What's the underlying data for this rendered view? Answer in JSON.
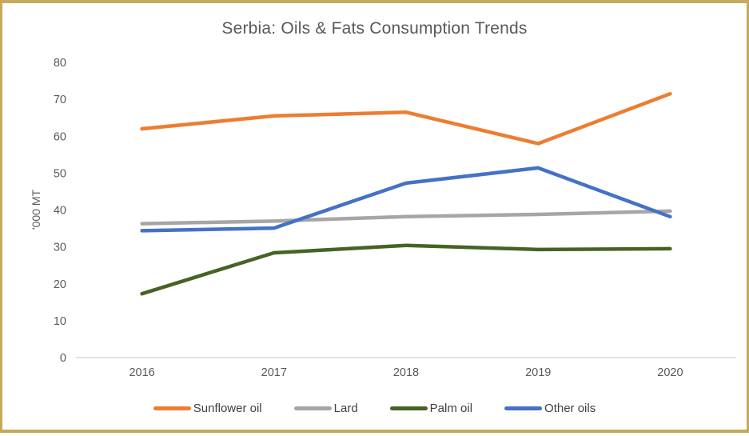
{
  "window": {
    "border_color": "#C5AA5A",
    "background": "#ffffff"
  },
  "chart_data": {
    "type": "line",
    "title": "Serbia: Oils & Fats Consumption Trends",
    "xlabel": "",
    "ylabel": "'000 MT",
    "categories": [
      "2016",
      "2017",
      "2018",
      "2019",
      "2020"
    ],
    "y_ticks": [
      0,
      10,
      20,
      30,
      40,
      50,
      60,
      70,
      80
    ],
    "ylim": [
      0,
      80
    ],
    "grid": false,
    "legend_position": "bottom",
    "axis_color": "#D9D9D9",
    "text_color": "#595959",
    "legend_text_color": "#404040",
    "series": [
      {
        "name": "Sunflower oil",
        "color": "#ED7D31",
        "values": [
          62.0,
          65.5,
          66.5,
          58.0,
          71.5
        ]
      },
      {
        "name": "Lard",
        "color": "#A6A6A6",
        "values": [
          36.3,
          37.0,
          38.2,
          38.8,
          39.7
        ]
      },
      {
        "name": "Palm oil",
        "color": "#466324",
        "values": [
          17.3,
          28.4,
          30.4,
          29.3,
          29.5
        ]
      },
      {
        "name": "Other oils",
        "color": "#4472C4",
        "values": [
          34.4,
          35.1,
          47.3,
          51.4,
          38.2
        ]
      }
    ]
  }
}
